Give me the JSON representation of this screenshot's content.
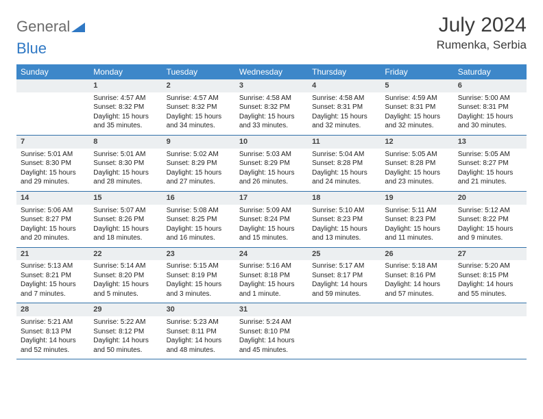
{
  "logo": {
    "text1": "General",
    "text2": "Blue"
  },
  "header": {
    "title": "July 2024",
    "location": "Rumenka, Serbia"
  },
  "colors": {
    "header_bg": "#3d87c9",
    "header_text": "#ffffff",
    "daynum_bg": "#eceff1",
    "row_border": "#2f6fa8",
    "logo_gray": "#6b6b6b",
    "logo_blue": "#2f78c4"
  },
  "weekdays": [
    "Sunday",
    "Monday",
    "Tuesday",
    "Wednesday",
    "Thursday",
    "Friday",
    "Saturday"
  ],
  "weeks": [
    [
      null,
      {
        "n": "1",
        "sr": "Sunrise: 4:57 AM",
        "ss": "Sunset: 8:32 PM",
        "dl": "Daylight: 15 hours and 35 minutes."
      },
      {
        "n": "2",
        "sr": "Sunrise: 4:57 AM",
        "ss": "Sunset: 8:32 PM",
        "dl": "Daylight: 15 hours and 34 minutes."
      },
      {
        "n": "3",
        "sr": "Sunrise: 4:58 AM",
        "ss": "Sunset: 8:32 PM",
        "dl": "Daylight: 15 hours and 33 minutes."
      },
      {
        "n": "4",
        "sr": "Sunrise: 4:58 AM",
        "ss": "Sunset: 8:31 PM",
        "dl": "Daylight: 15 hours and 32 minutes."
      },
      {
        "n": "5",
        "sr": "Sunrise: 4:59 AM",
        "ss": "Sunset: 8:31 PM",
        "dl": "Daylight: 15 hours and 32 minutes."
      },
      {
        "n": "6",
        "sr": "Sunrise: 5:00 AM",
        "ss": "Sunset: 8:31 PM",
        "dl": "Daylight: 15 hours and 30 minutes."
      }
    ],
    [
      {
        "n": "7",
        "sr": "Sunrise: 5:01 AM",
        "ss": "Sunset: 8:30 PM",
        "dl": "Daylight: 15 hours and 29 minutes."
      },
      {
        "n": "8",
        "sr": "Sunrise: 5:01 AM",
        "ss": "Sunset: 8:30 PM",
        "dl": "Daylight: 15 hours and 28 minutes."
      },
      {
        "n": "9",
        "sr": "Sunrise: 5:02 AM",
        "ss": "Sunset: 8:29 PM",
        "dl": "Daylight: 15 hours and 27 minutes."
      },
      {
        "n": "10",
        "sr": "Sunrise: 5:03 AM",
        "ss": "Sunset: 8:29 PM",
        "dl": "Daylight: 15 hours and 26 minutes."
      },
      {
        "n": "11",
        "sr": "Sunrise: 5:04 AM",
        "ss": "Sunset: 8:28 PM",
        "dl": "Daylight: 15 hours and 24 minutes."
      },
      {
        "n": "12",
        "sr": "Sunrise: 5:05 AM",
        "ss": "Sunset: 8:28 PM",
        "dl": "Daylight: 15 hours and 23 minutes."
      },
      {
        "n": "13",
        "sr": "Sunrise: 5:05 AM",
        "ss": "Sunset: 8:27 PM",
        "dl": "Daylight: 15 hours and 21 minutes."
      }
    ],
    [
      {
        "n": "14",
        "sr": "Sunrise: 5:06 AM",
        "ss": "Sunset: 8:27 PM",
        "dl": "Daylight: 15 hours and 20 minutes."
      },
      {
        "n": "15",
        "sr": "Sunrise: 5:07 AM",
        "ss": "Sunset: 8:26 PM",
        "dl": "Daylight: 15 hours and 18 minutes."
      },
      {
        "n": "16",
        "sr": "Sunrise: 5:08 AM",
        "ss": "Sunset: 8:25 PM",
        "dl": "Daylight: 15 hours and 16 minutes."
      },
      {
        "n": "17",
        "sr": "Sunrise: 5:09 AM",
        "ss": "Sunset: 8:24 PM",
        "dl": "Daylight: 15 hours and 15 minutes."
      },
      {
        "n": "18",
        "sr": "Sunrise: 5:10 AM",
        "ss": "Sunset: 8:23 PM",
        "dl": "Daylight: 15 hours and 13 minutes."
      },
      {
        "n": "19",
        "sr": "Sunrise: 5:11 AM",
        "ss": "Sunset: 8:23 PM",
        "dl": "Daylight: 15 hours and 11 minutes."
      },
      {
        "n": "20",
        "sr": "Sunrise: 5:12 AM",
        "ss": "Sunset: 8:22 PM",
        "dl": "Daylight: 15 hours and 9 minutes."
      }
    ],
    [
      {
        "n": "21",
        "sr": "Sunrise: 5:13 AM",
        "ss": "Sunset: 8:21 PM",
        "dl": "Daylight: 15 hours and 7 minutes."
      },
      {
        "n": "22",
        "sr": "Sunrise: 5:14 AM",
        "ss": "Sunset: 8:20 PM",
        "dl": "Daylight: 15 hours and 5 minutes."
      },
      {
        "n": "23",
        "sr": "Sunrise: 5:15 AM",
        "ss": "Sunset: 8:19 PM",
        "dl": "Daylight: 15 hours and 3 minutes."
      },
      {
        "n": "24",
        "sr": "Sunrise: 5:16 AM",
        "ss": "Sunset: 8:18 PM",
        "dl": "Daylight: 15 hours and 1 minute."
      },
      {
        "n": "25",
        "sr": "Sunrise: 5:17 AM",
        "ss": "Sunset: 8:17 PM",
        "dl": "Daylight: 14 hours and 59 minutes."
      },
      {
        "n": "26",
        "sr": "Sunrise: 5:18 AM",
        "ss": "Sunset: 8:16 PM",
        "dl": "Daylight: 14 hours and 57 minutes."
      },
      {
        "n": "27",
        "sr": "Sunrise: 5:20 AM",
        "ss": "Sunset: 8:15 PM",
        "dl": "Daylight: 14 hours and 55 minutes."
      }
    ],
    [
      {
        "n": "28",
        "sr": "Sunrise: 5:21 AM",
        "ss": "Sunset: 8:13 PM",
        "dl": "Daylight: 14 hours and 52 minutes."
      },
      {
        "n": "29",
        "sr": "Sunrise: 5:22 AM",
        "ss": "Sunset: 8:12 PM",
        "dl": "Daylight: 14 hours and 50 minutes."
      },
      {
        "n": "30",
        "sr": "Sunrise: 5:23 AM",
        "ss": "Sunset: 8:11 PM",
        "dl": "Daylight: 14 hours and 48 minutes."
      },
      {
        "n": "31",
        "sr": "Sunrise: 5:24 AM",
        "ss": "Sunset: 8:10 PM",
        "dl": "Daylight: 14 hours and 45 minutes."
      },
      null,
      null,
      null
    ]
  ]
}
